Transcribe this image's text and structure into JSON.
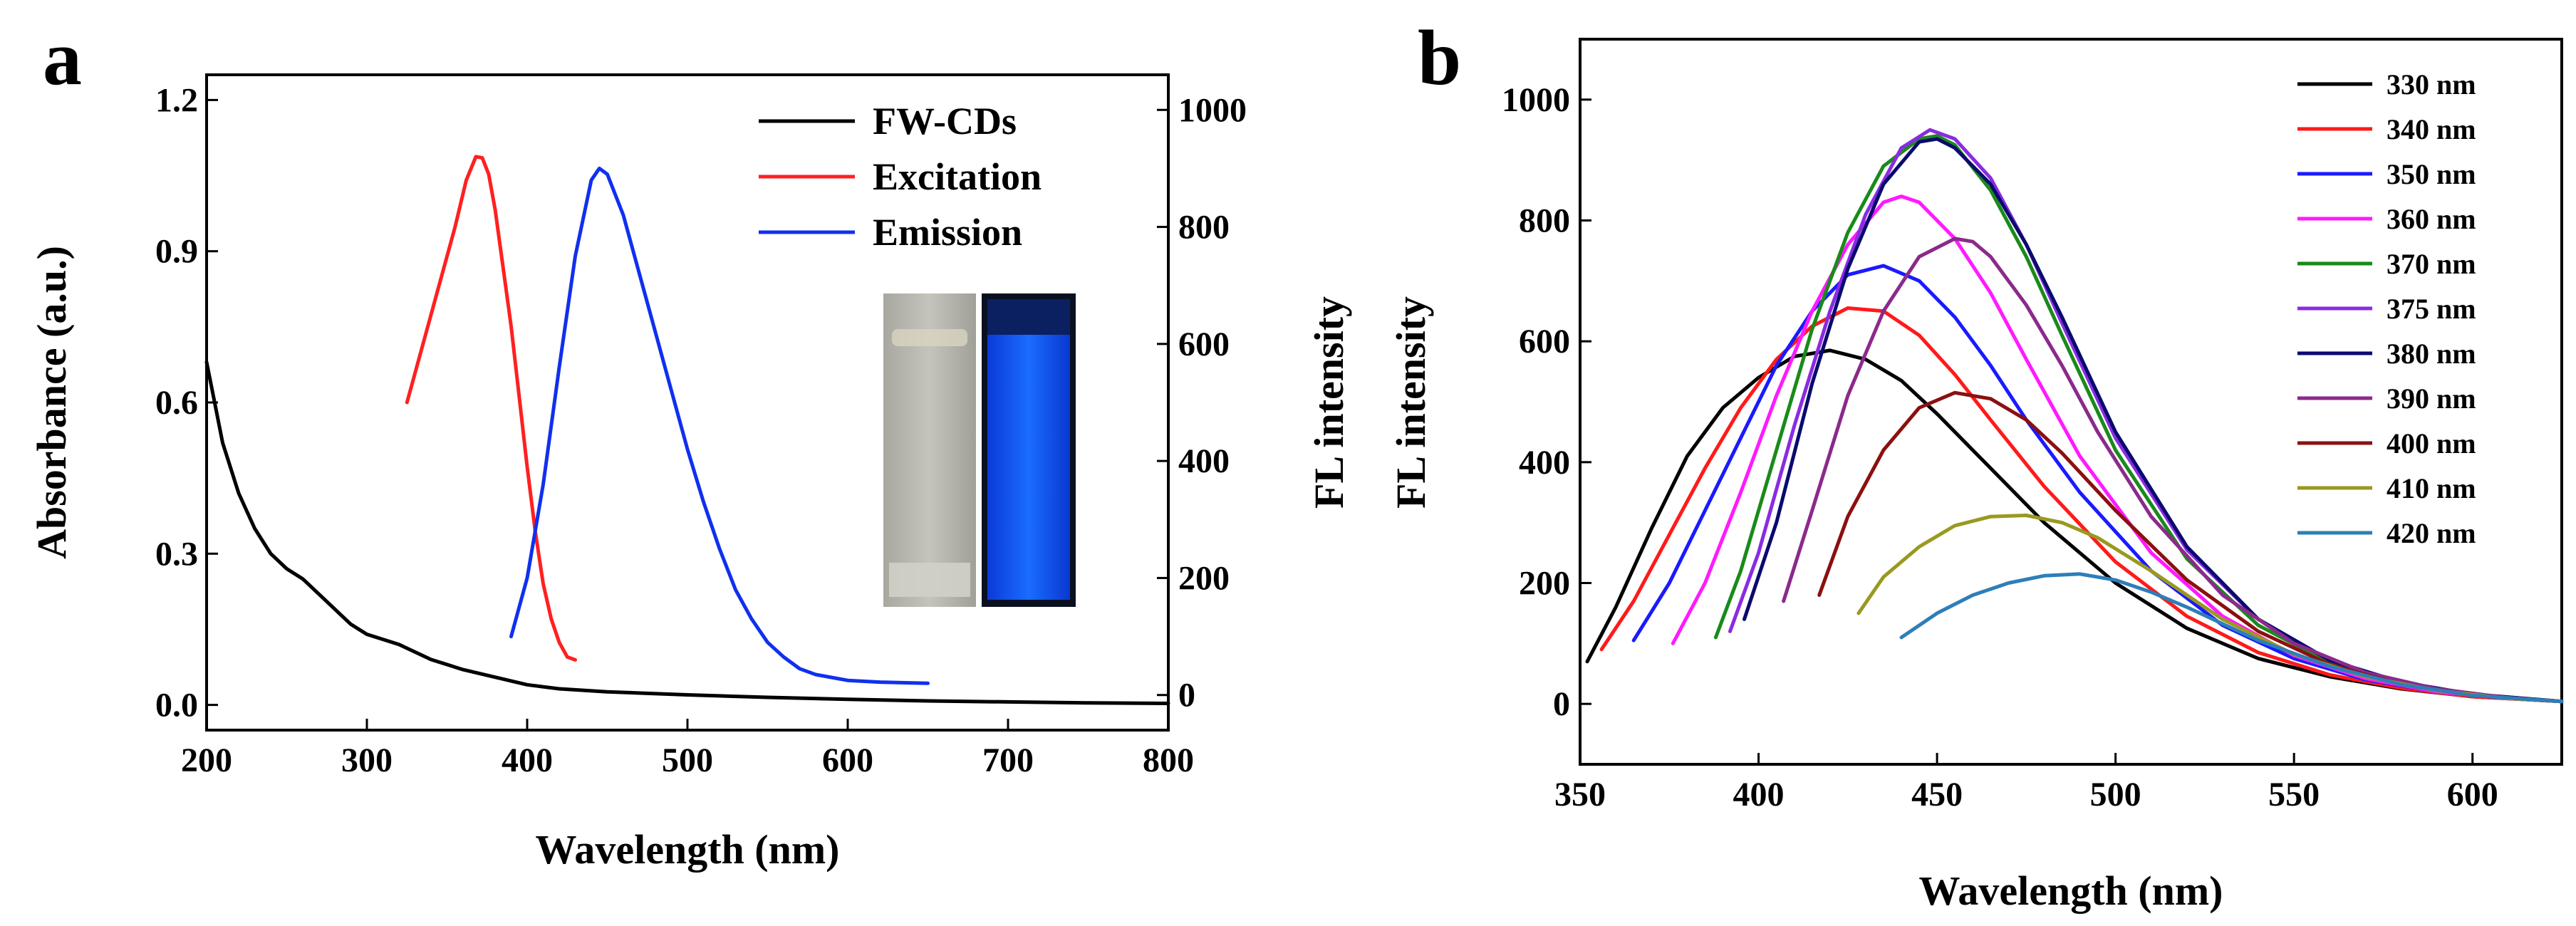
{
  "chart_data": [
    {
      "panel_label": "a",
      "type": "line",
      "xlabel": "Wavelength (nm)",
      "ylabel": "Absorbance (a.u.)",
      "y2label": "FL intensity",
      "xlim": [
        200,
        800
      ],
      "ylim": [
        -0.05,
        1.25
      ],
      "y2lim": [
        -60,
        1060
      ],
      "xticks": [
        "200",
        "300",
        "400",
        "500",
        "600",
        "700",
        "800"
      ],
      "yticks": [
        "0.0",
        "0.3",
        "0.6",
        "0.9",
        "1.2"
      ],
      "y2ticks": [
        "0",
        "200",
        "400",
        "600",
        "800",
        "1000"
      ],
      "legend_position": "top-right",
      "inset": "photos of cuvettes: sample under daylight (left) and under UV light with blue emission (right)",
      "series": [
        {
          "name": "FW-CDs",
          "color": "#000000",
          "axis": "left",
          "x": [
            200,
            205,
            210,
            220,
            230,
            240,
            250,
            260,
            270,
            280,
            290,
            300,
            320,
            340,
            360,
            380,
            400,
            420,
            450,
            500,
            550,
            600,
            650,
            700,
            750,
            800
          ],
          "y": [
            0.68,
            0.6,
            0.52,
            0.42,
            0.35,
            0.3,
            0.27,
            0.25,
            0.22,
            0.19,
            0.16,
            0.14,
            0.12,
            0.09,
            0.07,
            0.055,
            0.04,
            0.032,
            0.026,
            0.02,
            0.015,
            0.011,
            0.008,
            0.006,
            0.004,
            0.003
          ]
        },
        {
          "name": "Excitation",
          "color": "#ff2020",
          "axis": "right",
          "x": [
            325,
            335,
            345,
            355,
            362,
            368,
            372,
            376,
            380,
            385,
            390,
            395,
            400,
            405,
            410,
            415,
            420,
            425,
            430
          ],
          "y": [
            500,
            600,
            700,
            800,
            880,
            920,
            918,
            890,
            830,
            730,
            630,
            510,
            390,
            280,
            190,
            130,
            90,
            65,
            60
          ]
        },
        {
          "name": "Emission",
          "color": "#1030ee",
          "axis": "right",
          "x": [
            390,
            400,
            410,
            420,
            430,
            440,
            445,
            450,
            460,
            470,
            480,
            490,
            500,
            510,
            520,
            530,
            540,
            550,
            560,
            570,
            580,
            600,
            620,
            650
          ],
          "y": [
            100,
            200,
            360,
            560,
            750,
            880,
            900,
            890,
            820,
            720,
            620,
            520,
            420,
            330,
            250,
            180,
            130,
            90,
            65,
            45,
            35,
            25,
            22,
            20
          ]
        }
      ]
    },
    {
      "panel_label": "b",
      "type": "line",
      "xlabel": "Wavelength (nm)",
      "ylabel": "FL intensity",
      "xlim": [
        350,
        625
      ],
      "ylim": [
        -100,
        1100
      ],
      "xticks": [
        "350",
        "400",
        "450",
        "500",
        "550",
        "600"
      ],
      "yticks": [
        "0",
        "200",
        "400",
        "600",
        "800",
        "1000"
      ],
      "legend_position": "top-right",
      "series": [
        {
          "name": "330 nm",
          "color": "#000000",
          "x": [
            352,
            360,
            370,
            380,
            390,
            400,
            410,
            420,
            430,
            440,
            450,
            460,
            480,
            500,
            520,
            540,
            560,
            580,
            600,
            625
          ],
          "y": [
            70,
            160,
            290,
            410,
            490,
            540,
            575,
            585,
            570,
            535,
            480,
            420,
            300,
            200,
            125,
            75,
            45,
            25,
            12,
            4
          ]
        },
        {
          "name": "340 nm",
          "color": "#ff1a1a",
          "x": [
            356,
            365,
            375,
            385,
            395,
            405,
            415,
            425,
            435,
            445,
            455,
            465,
            480,
            500,
            520,
            540,
            560,
            580,
            600,
            625
          ],
          "y": [
            90,
            170,
            280,
            390,
            490,
            570,
            625,
            655,
            650,
            610,
            545,
            470,
            360,
            235,
            145,
            85,
            48,
            26,
            12,
            4
          ]
        },
        {
          "name": "350 nm",
          "color": "#1a1aff",
          "x": [
            365,
            375,
            385,
            395,
            405,
            415,
            425,
            435,
            445,
            455,
            465,
            475,
            490,
            510,
            530,
            550,
            570,
            590,
            610,
            625
          ],
          "y": [
            105,
            200,
            320,
            440,
            560,
            650,
            710,
            725,
            700,
            640,
            560,
            470,
            350,
            220,
            130,
            75,
            40,
            20,
            9,
            4
          ]
        },
        {
          "name": "360 nm",
          "color": "#ff1aff",
          "x": [
            376,
            385,
            395,
            405,
            415,
            425,
            435,
            440,
            445,
            455,
            465,
            475,
            490,
            510,
            530,
            550,
            570,
            590,
            610,
            625
          ],
          "y": [
            100,
            200,
            350,
            510,
            650,
            760,
            830,
            840,
            830,
            770,
            680,
            570,
            410,
            250,
            145,
            80,
            42,
            20,
            9,
            4
          ]
        },
        {
          "name": "370 nm",
          "color": "#1a8a1a",
          "x": [
            388,
            395,
            405,
            415,
            425,
            435,
            445,
            450,
            455,
            465,
            475,
            485,
            500,
            520,
            540,
            560,
            580,
            600,
            625
          ],
          "y": [
            110,
            220,
            420,
            620,
            780,
            890,
            935,
            940,
            925,
            850,
            740,
            610,
            420,
            240,
            130,
            68,
            34,
            15,
            4
          ]
        },
        {
          "name": "375 nm",
          "color": "#8a2be2",
          "x": [
            392,
            400,
            410,
            420,
            430,
            440,
            448,
            455,
            465,
            475,
            485,
            500,
            520,
            540,
            560,
            580,
            600,
            625
          ],
          "y": [
            120,
            250,
            460,
            650,
            810,
            920,
            950,
            935,
            870,
            760,
            630,
            440,
            255,
            140,
            72,
            36,
            16,
            4
          ]
        },
        {
          "name": "380 nm",
          "color": "#0a0a6e",
          "x": [
            396,
            405,
            415,
            425,
            435,
            445,
            450,
            455,
            465,
            475,
            485,
            500,
            520,
            540,
            560,
            580,
            600,
            625
          ],
          "y": [
            140,
            300,
            530,
            720,
            860,
            930,
            935,
            920,
            860,
            760,
            640,
            450,
            260,
            140,
            72,
            36,
            16,
            4
          ]
        },
        {
          "name": "390 nm",
          "color": "#8b2a8b",
          "x": [
            407,
            415,
            425,
            435,
            445,
            455,
            460,
            465,
            475,
            485,
            495,
            510,
            530,
            550,
            570,
            590,
            610,
            625
          ],
          "y": [
            170,
            320,
            510,
            650,
            740,
            770,
            765,
            740,
            660,
            560,
            450,
            310,
            180,
            100,
            52,
            25,
            10,
            4
          ]
        },
        {
          "name": "400 nm",
          "color": "#8b1010",
          "x": [
            417,
            425,
            435,
            445,
            455,
            465,
            475,
            485,
            500,
            520,
            540,
            560,
            580,
            600,
            625
          ],
          "y": [
            180,
            310,
            420,
            490,
            515,
            505,
            470,
            415,
            320,
            205,
            120,
            65,
            32,
            14,
            4
          ]
        },
        {
          "name": "410 nm",
          "color": "#999920",
          "x": [
            428,
            435,
            445,
            455,
            465,
            475,
            485,
            495,
            510,
            530,
            550,
            570,
            590,
            610,
            625
          ],
          "y": [
            150,
            210,
            260,
            295,
            310,
            312,
            300,
            275,
            220,
            140,
            82,
            45,
            22,
            9,
            4
          ]
        },
        {
          "name": "420 nm",
          "color": "#2e7eb8",
          "x": [
            440,
            450,
            460,
            470,
            480,
            490,
            500,
            510,
            520,
            540,
            560,
            580,
            600,
            625
          ],
          "y": [
            110,
            150,
            180,
            200,
            212,
            215,
            205,
            185,
            160,
            105,
            62,
            32,
            14,
            4
          ]
        }
      ]
    }
  ]
}
